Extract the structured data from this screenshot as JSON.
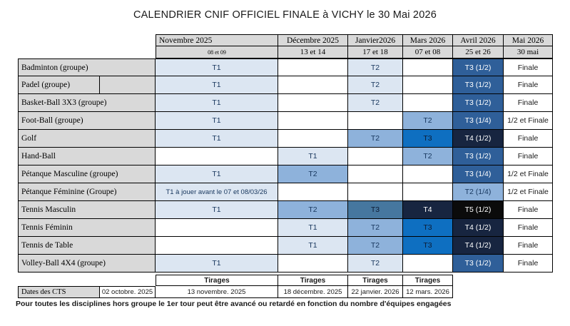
{
  "title": "CALENDRIER CNIF OFFICIEL FINALE à VICHY le 30 Mai 2026",
  "calendar": {
    "months": [
      {
        "label": "Novembre 2025",
        "dates": "08 et 09"
      },
      {
        "label": "Décembre 2025",
        "dates": "13 et 14"
      },
      {
        "label": "Janvier2026",
        "dates": "17 et 18"
      },
      {
        "label": "Mars 2026",
        "dates": "07 et 08"
      },
      {
        "label": "Avril 2026",
        "dates": "25 et 26"
      },
      {
        "label": "Mai 2026",
        "dates": "30 mai"
      }
    ],
    "rows": [
      {
        "label": "Badminton (groupe)",
        "cells": [
          "T1",
          "",
          "T2",
          "",
          "T3 (1/2)",
          "Finale"
        ]
      },
      {
        "label": "Padel (groupe)",
        "cells": [
          "T1",
          "",
          "T2",
          "",
          "T3 (1/2)",
          "Finale"
        ]
      },
      {
        "label": "Basket-Ball 3X3 (groupe)",
        "cells": [
          "T1",
          "",
          "T2",
          "",
          "T3 (1/2)",
          "Finale"
        ]
      },
      {
        "label": "Foot-Ball (groupe)",
        "cells": [
          "T1",
          "",
          "",
          "T2",
          "T3 (1/4)",
          "1/2 et Finale"
        ]
      },
      {
        "label": "Golf",
        "cells": [
          "T1",
          "",
          "T2",
          "T3",
          "T4 (1/2)",
          "Finale"
        ]
      },
      {
        "label": "Hand-Ball",
        "cells": [
          "",
          "T1",
          "",
          "T2",
          "T3 (1/2)",
          "Finale"
        ]
      },
      {
        "label": "Pétanque Masculine (groupe)",
        "cells": [
          "T1",
          "T2",
          "",
          "",
          "T3 (1/4)",
          "1/2 et Finale"
        ]
      },
      {
        "label": "Pétanque Féminine (Groupe)",
        "cells": [
          "T1 à jouer avant le 07 et 08/03/26",
          "",
          "",
          "",
          "T2 (1/4)",
          "1/2 et Finale"
        ]
      },
      {
        "label": "Tennis Masculin",
        "cells": [
          "T1",
          "T2",
          "T3",
          "T4",
          "T5 (1/2)",
          "Finale"
        ]
      },
      {
        "label": "Tennis Féminin",
        "cells": [
          "",
          "T1",
          "T2",
          "T3",
          "T4 (1/2)",
          "Finale"
        ]
      },
      {
        "label": "Tennis de Table",
        "cells": [
          "",
          "T1",
          "T2",
          "T3",
          "T4 (1/2)",
          "Finale"
        ]
      },
      {
        "label": "Volley-Ball 4X4 (groupe)",
        "cells": [
          "T1",
          "",
          "T2",
          "",
          "T3 (1/2)",
          "Finale"
        ]
      }
    ]
  },
  "cts": {
    "tirages": [
      "Tirages",
      "Tirages",
      "Tirages",
      "Tirages"
    ],
    "label": "Dates des CTS",
    "cts_date": "02 octobre. 2025",
    "dates": [
      "13 novembre. 2025",
      "18 décembre. 2025",
      "22 janvier. 2026",
      "12 mars. 2026"
    ]
  },
  "note": "Pour toutes les disciplines hors groupe le 1er tour peut être avancé ou retardé en fonction du nombre d'équipes engagées",
  "colors": {
    "header_bg": "#d9d9d9",
    "tier1": "#dce6f2",
    "tier2": "#8eb2db",
    "tier3_steel": "#46779f",
    "tier3_bright": "#0e6fc1",
    "tier_dark": "#2f5f99",
    "tier_navy": "#172540",
    "tier_black": "#0b0b0b"
  }
}
